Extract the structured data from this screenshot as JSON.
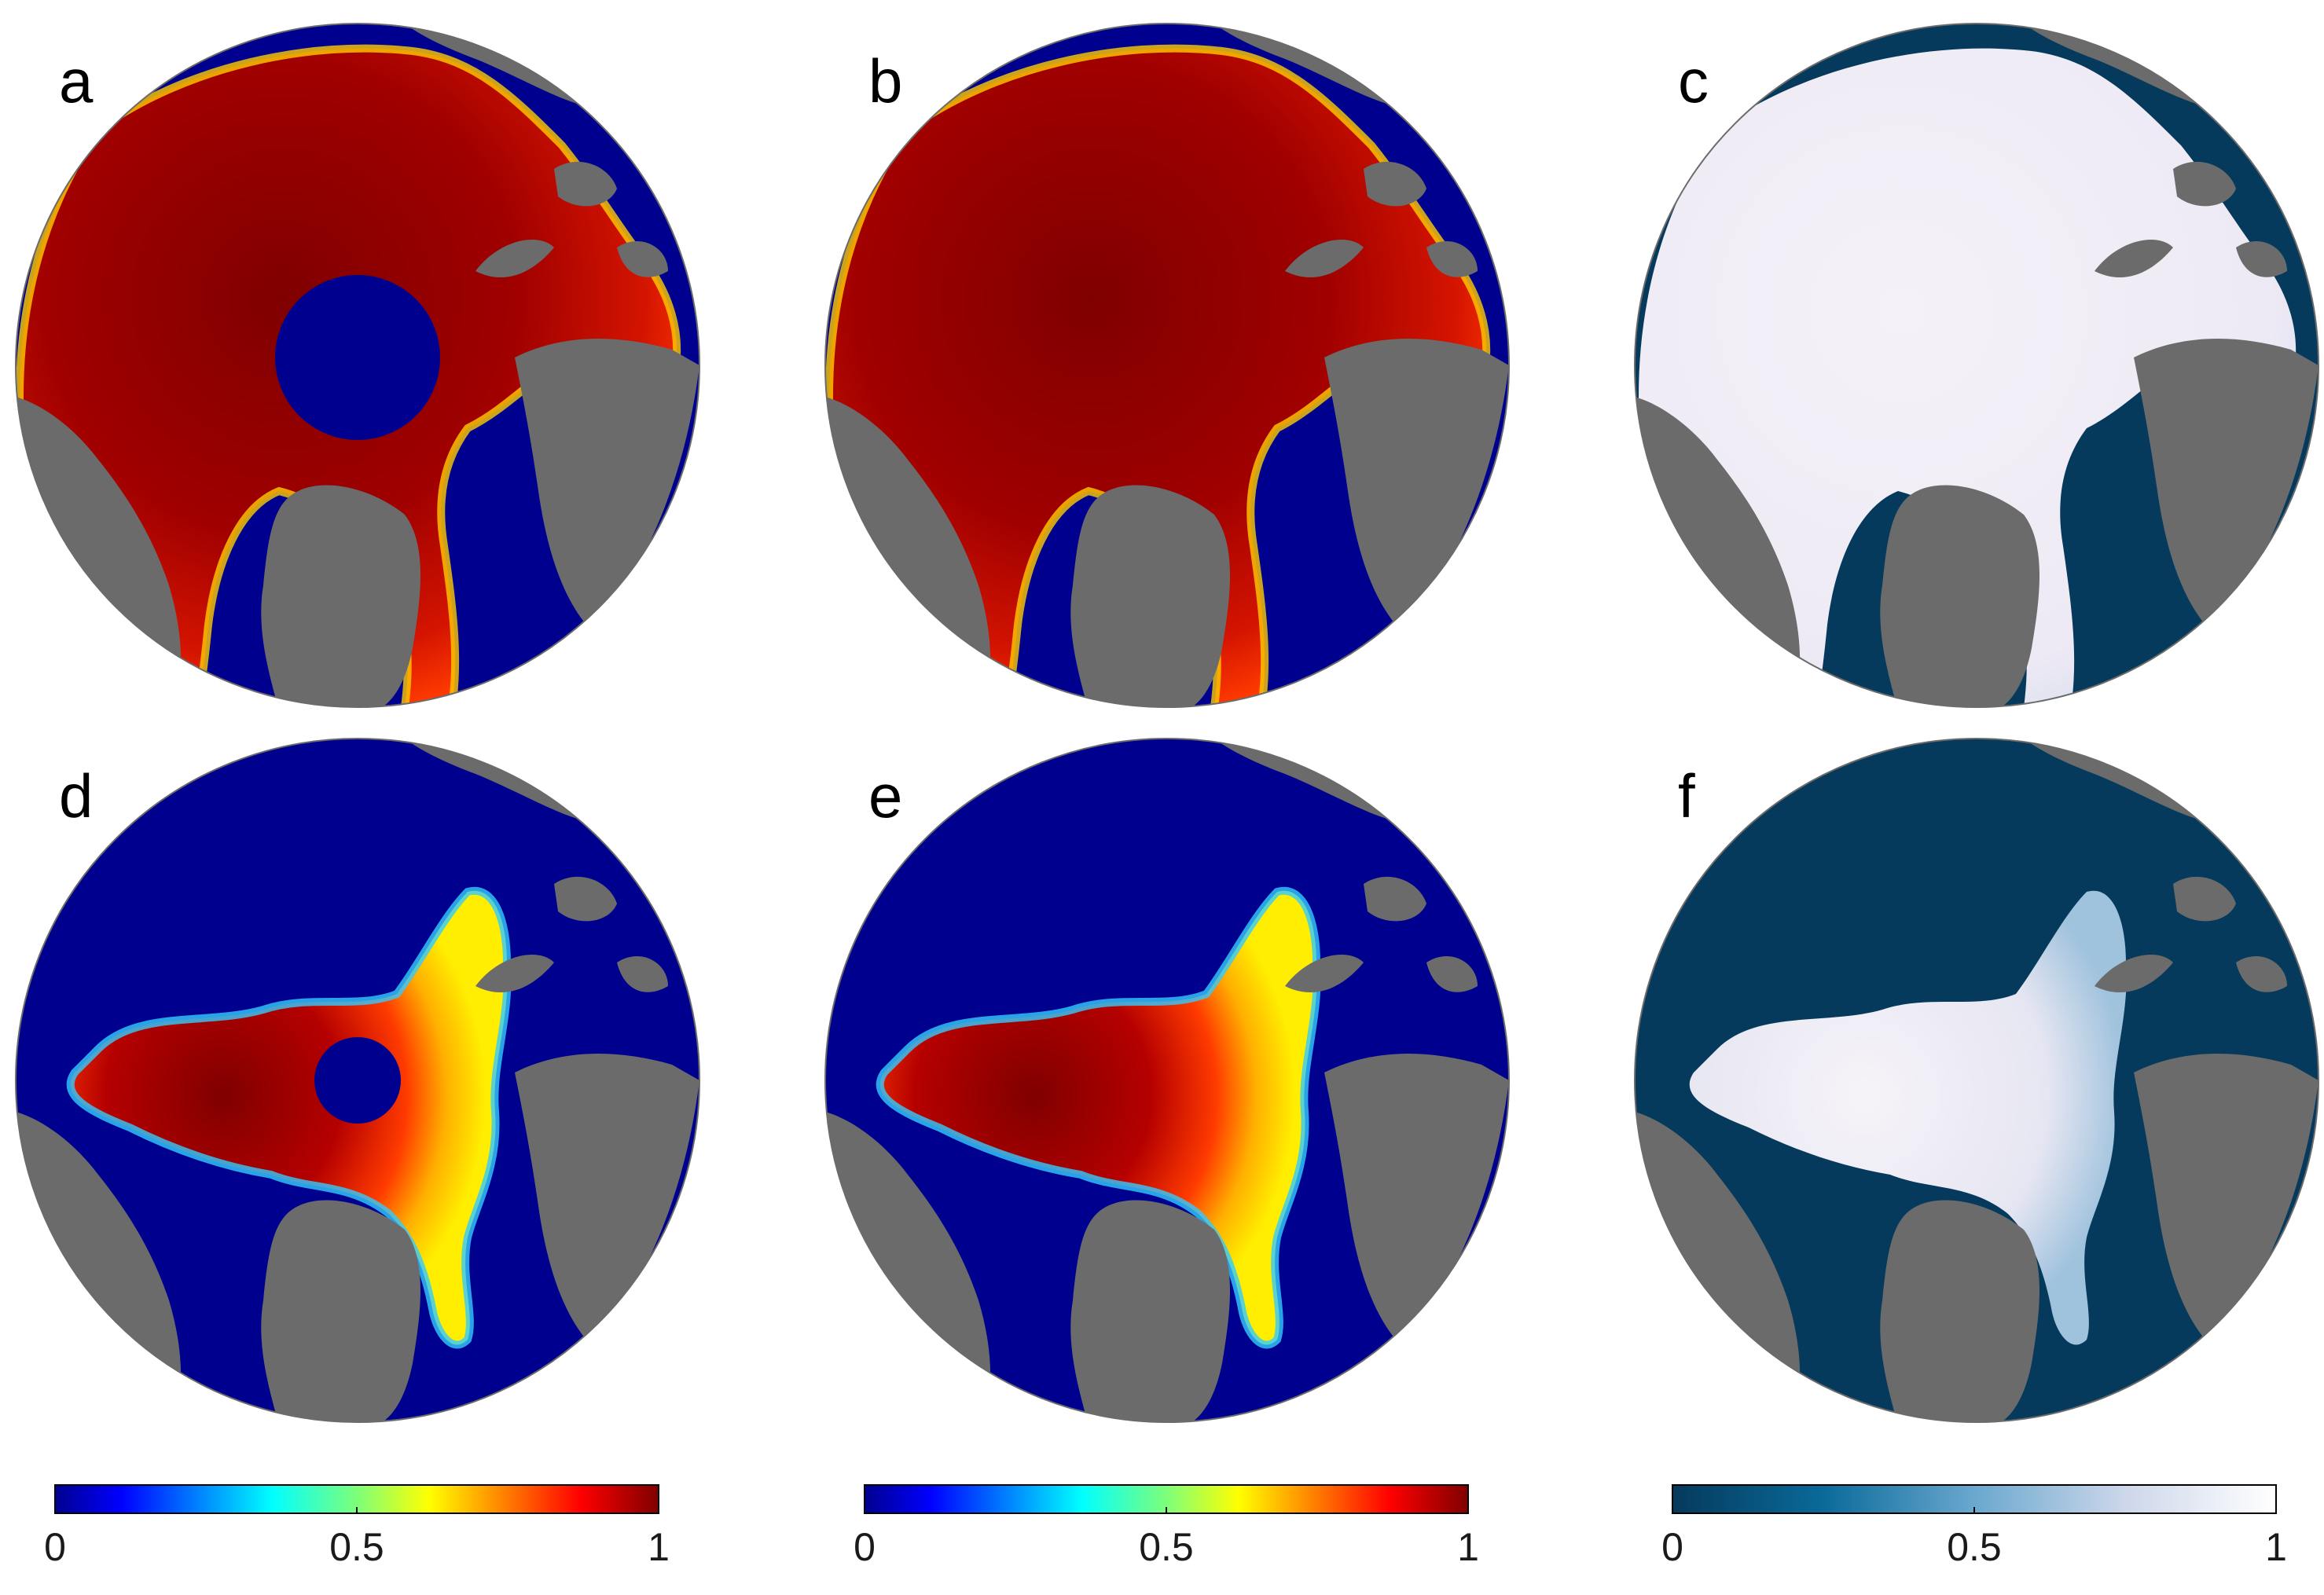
{
  "panels": [
    {
      "label": "a",
      "scheme": "jet",
      "ice_extent": "winter",
      "pole_hole": true
    },
    {
      "label": "b",
      "scheme": "jet",
      "ice_extent": "winter",
      "pole_hole": false
    },
    {
      "label": "c",
      "scheme": "blue-white",
      "ice_extent": "winter",
      "pole_hole": false
    },
    {
      "label": "d",
      "scheme": "jet",
      "ice_extent": "summer",
      "pole_hole": true
    },
    {
      "label": "e",
      "scheme": "jet",
      "ice_extent": "summer",
      "pole_hole": false
    },
    {
      "label": "f",
      "scheme": "blue-white",
      "ice_extent": "summer",
      "pole_hole": false
    }
  ],
  "colorbars": [
    {
      "scheme": "jet",
      "ticks": [
        "0",
        "0.5",
        "1"
      ]
    },
    {
      "scheme": "jet",
      "ticks": [
        "0",
        "0.5",
        "1"
      ]
    },
    {
      "scheme": "blue-white",
      "ticks": [
        "0",
        "0.5",
        "1"
      ]
    }
  ],
  "colors": {
    "land": "#6b6b6b",
    "jet_low": "#00008f",
    "jet_high": "#800000",
    "bw_low": "#053a5c",
    "bw_high": "#ffffff"
  }
}
